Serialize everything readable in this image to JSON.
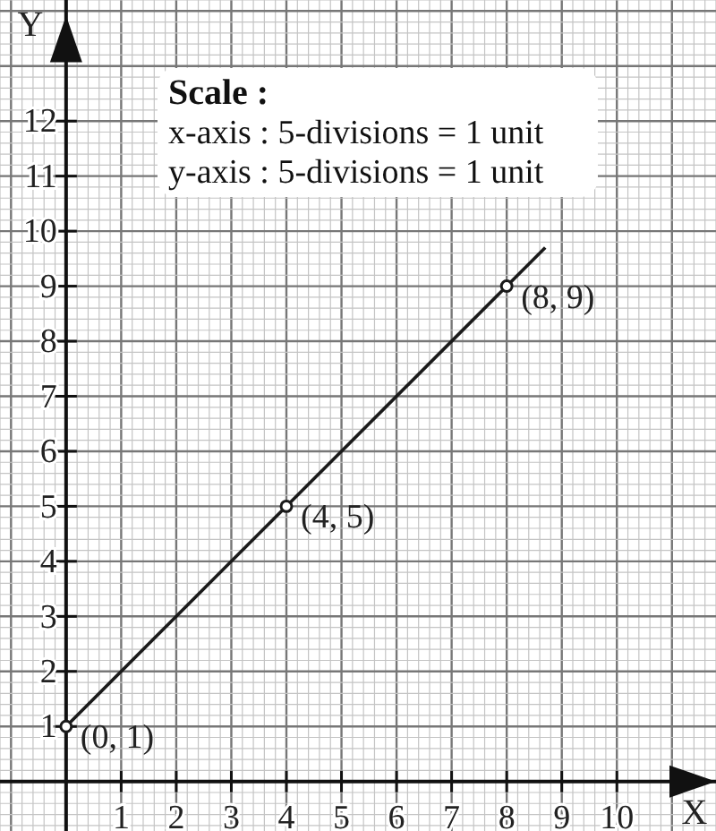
{
  "chart_data": {
    "type": "line",
    "xlabel": "X",
    "ylabel": "Y",
    "xlim": [
      -1.2,
      11.8
    ],
    "ylim": [
      -0.9,
      14.2
    ],
    "xticks": [
      1,
      2,
      3,
      4,
      5,
      6,
      7,
      8,
      9,
      10
    ],
    "yticks": [
      1,
      2,
      3,
      4,
      5,
      6,
      7,
      8,
      9,
      10,
      11,
      12
    ],
    "grid": true,
    "series": [
      {
        "color": "#1a1a1a",
        "x": [
          0,
          8.7
        ],
        "values": [
          1,
          9.7
        ],
        "marker": "none",
        "line_style": "solid"
      },
      {
        "type": "scatter",
        "color": "#1a1a1a",
        "x": [
          0,
          4,
          8
        ],
        "values": [
          1,
          5,
          9
        ],
        "marker": "circle"
      }
    ],
    "annotations": [
      "Scale :",
      "x-axis : 5-divisions = 1 unit",
      "y-axis : 5-divisions = 1 unit",
      {
        "text": "(0, 1)",
        "x": 0,
        "y": 1
      },
      {
        "text": "(4, 5)",
        "x": 4,
        "y": 5
      },
      {
        "text": "(8, 9)",
        "x": 8,
        "y": 9
      }
    ]
  }
}
